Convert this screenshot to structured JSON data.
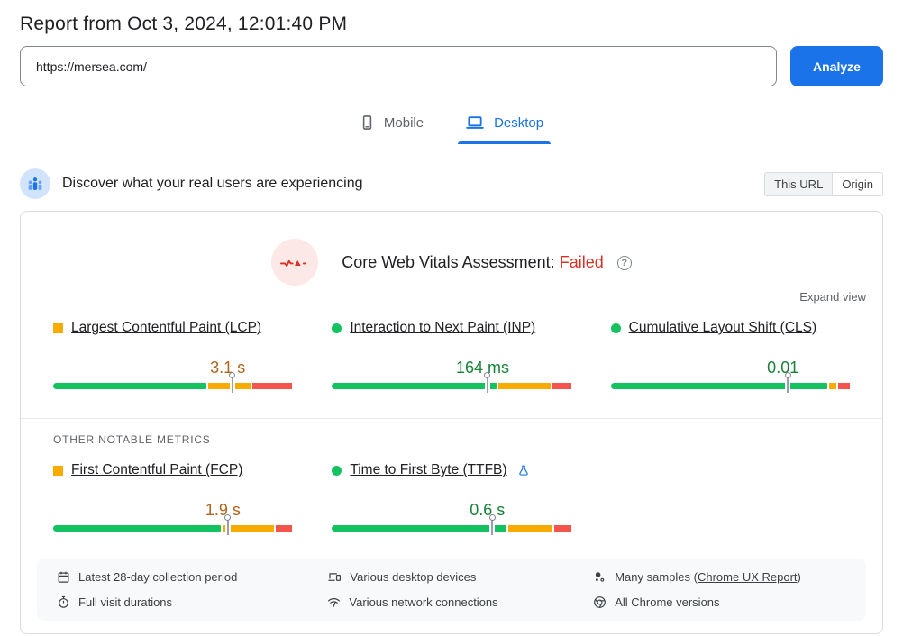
{
  "page": {
    "title": "Report from Oct 3, 2024, 12:01:40 PM"
  },
  "search": {
    "url_value": "https://mersea.com/",
    "analyze_label": "Analyze"
  },
  "tabs": {
    "mobile": "Mobile",
    "desktop": "Desktop"
  },
  "field_section": {
    "heading": "Discover what your real users are experiencing",
    "this_url_label": "This URL",
    "origin_label": "Origin"
  },
  "cwv": {
    "title": "Core Web Vitals Assessment:",
    "status": "Failed",
    "help_glyph": "?",
    "expand_label": "Expand view",
    "other_metrics_label": "OTHER NOTABLE METRICS"
  },
  "metrics": {
    "core": [
      {
        "id": "lcp",
        "name": "Largest Contentful Paint (LCP)",
        "value": "3.1 s",
        "rating": "needs-improvement",
        "distribution": {
          "good_pct": 65,
          "needs_improvement_pct": 18,
          "poor_pct": 17
        },
        "marker_pct": 75,
        "experimental": false
      },
      {
        "id": "inp",
        "name": "Interaction to Next Paint (INP)",
        "value": "164 ms",
        "rating": "good",
        "distribution": {
          "good_pct": 70,
          "needs_improvement_pct": 22,
          "poor_pct": 8
        },
        "marker_pct": 65,
        "experimental": false
      },
      {
        "id": "cls",
        "name": "Cumulative Layout Shift (CLS)",
        "value": "0.01",
        "rating": "good",
        "distribution": {
          "good_pct": 92,
          "needs_improvement_pct": 3,
          "poor_pct": 5
        },
        "marker_pct": 74,
        "experimental": false
      }
    ],
    "other": [
      {
        "id": "fcp",
        "name": "First Contentful Paint (FCP)",
        "value": "1.9 s",
        "rating": "needs-improvement",
        "distribution": {
          "good_pct": 71,
          "needs_improvement_pct": 22,
          "poor_pct": 7
        },
        "marker_pct": 73,
        "experimental": false
      },
      {
        "id": "ttfb",
        "name": "Time to First Byte (TTFB)",
        "value": "0.6 s",
        "rating": "good",
        "distribution": {
          "good_pct": 74,
          "needs_improvement_pct": 19,
          "poor_pct": 7
        },
        "marker_pct": 67,
        "experimental": true
      }
    ]
  },
  "footer": {
    "items": [
      {
        "icon": "calendar-icon",
        "text": "Latest 28-day collection period"
      },
      {
        "icon": "devices-icon",
        "text": "Various desktop devices"
      },
      {
        "icon": "samples-icon",
        "text": "Many samples (",
        "link": "Chrome UX Report",
        "suffix": ")"
      },
      {
        "icon": "stopwatch-icon",
        "text": "Full visit durations"
      },
      {
        "icon": "network-icon",
        "text": "Various network connections"
      },
      {
        "icon": "chrome-icon",
        "text": "All Chrome versions"
      }
    ]
  },
  "colors": {
    "good": "#14c260",
    "needs_improvement": "#f9ab00",
    "poor": "#f4544c",
    "good_text": "#188038",
    "needs_improvement_text": "#b0651c",
    "accent": "#1a73e8",
    "failed": "#d93025"
  }
}
